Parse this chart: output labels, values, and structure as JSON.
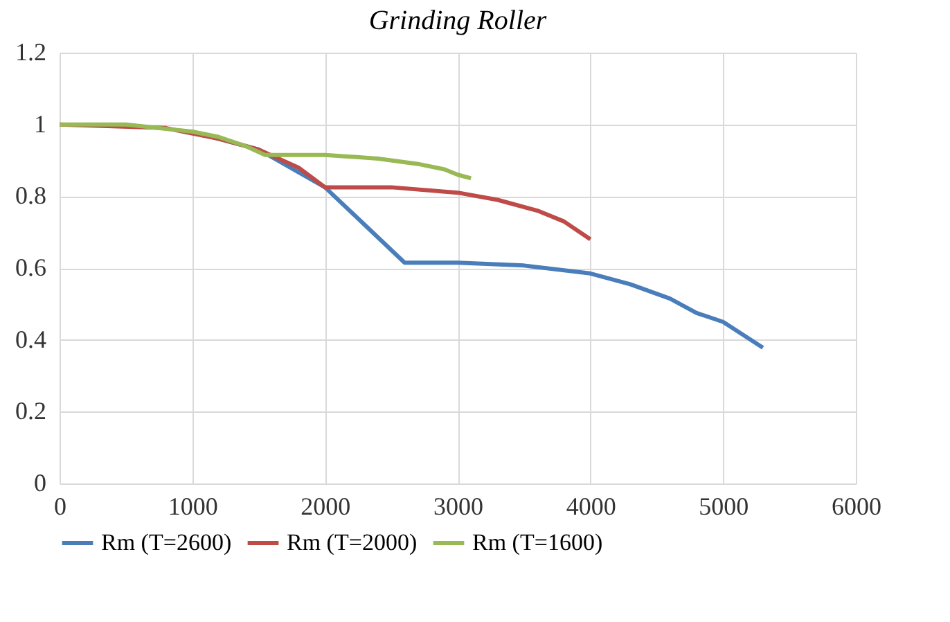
{
  "chart_data": {
    "type": "line",
    "title": "Grinding Roller",
    "xlim": [
      0,
      6000
    ],
    "xticks": [
      0,
      1000,
      2000,
      3000,
      4000,
      5000,
      6000
    ],
    "ylim": [
      0,
      1.2
    ],
    "yticks": [
      0,
      0.2,
      0.4,
      0.6,
      0.8,
      1,
      1.2
    ],
    "grid": true,
    "legend": "bottom",
    "series": [
      {
        "name": "Rm (T=2600)",
        "color": "#4a7ebb",
        "x": [
          1000,
          1500,
          2000,
          2300,
          2600,
          3000,
          3500,
          4000,
          4300,
          4600,
          4800,
          5000,
          5300
        ],
        "values": [
          0.98,
          0.93,
          0.825,
          0.72,
          0.615,
          0.615,
          0.607,
          0.585,
          0.555,
          0.515,
          0.475,
          0.45,
          0.378
        ]
      },
      {
        "name": "Rm (T=2000)",
        "color": "#be4b48",
        "x": [
          0,
          800,
          1200,
          1500,
          1800,
          2000,
          2500,
          3000,
          3300,
          3600,
          3800,
          4000
        ],
        "values": [
          1,
          0.99,
          0.96,
          0.93,
          0.88,
          0.825,
          0.825,
          0.81,
          0.79,
          0.76,
          0.73,
          0.68
        ]
      },
      {
        "name": "Rm (T=1600)",
        "color": "#98b954",
        "x": [
          0,
          500,
          1000,
          1200,
          1400,
          1550,
          2000,
          2400,
          2700,
          2900,
          3000,
          3100
        ],
        "values": [
          1,
          1,
          0.98,
          0.965,
          0.94,
          0.915,
          0.915,
          0.905,
          0.89,
          0.875,
          0.86,
          0.85
        ]
      }
    ]
  }
}
